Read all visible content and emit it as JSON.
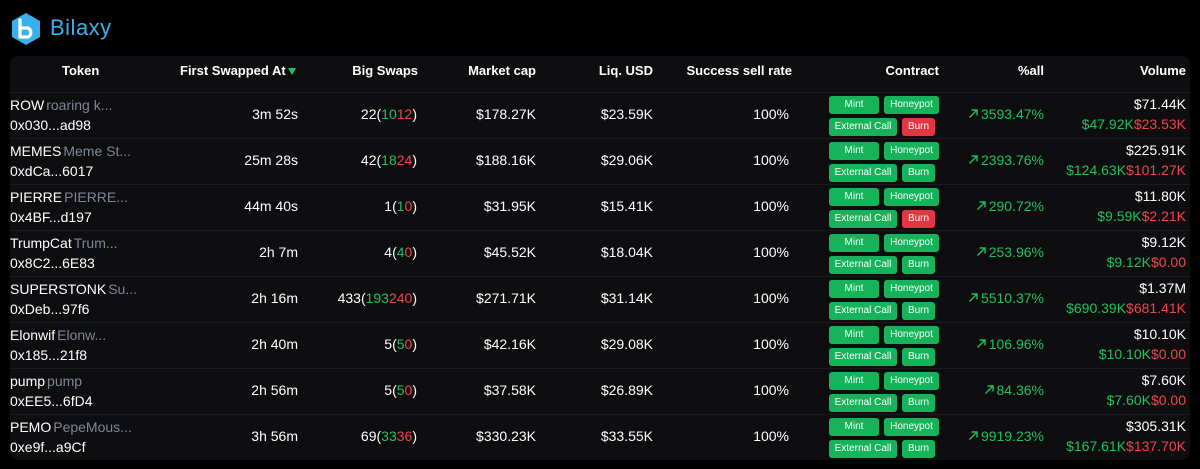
{
  "app": {
    "brand": "Bilaxy",
    "logo_icon": "bilaxy-logo-icon"
  },
  "colors": {
    "accent": "#3ab0ea",
    "positive": "#1fc15e",
    "negative": "#f0454b",
    "tag_green": "#17b35a",
    "tag_red": "#e23643"
  },
  "table": {
    "headers": {
      "token": "Token",
      "first_swapped": "First Swapped At",
      "big_swaps": "Big Swaps",
      "market_cap": "Market cap",
      "liq_usd": "Liq. USD",
      "success_sell_rate": "Success sell rate",
      "contract": "Contract",
      "pct_all": "%all",
      "volume": "Volume"
    },
    "rows": [
      {
        "symbol": "ROW",
        "name": "roaring k...",
        "address": "0x030...ad98",
        "first_swapped": "3m 52s",
        "big_total": "22",
        "big_buy": "10",
        "big_sell": "12",
        "market_cap": "$178.27K",
        "liq": "$23.59K",
        "ssr": "100%",
        "tags": [
          {
            "label": "Mint",
            "color": "green"
          },
          {
            "label": "Honeypot",
            "color": "green"
          },
          {
            "label": "External Call",
            "color": "green"
          },
          {
            "label": "Burn",
            "color": "red"
          }
        ],
        "pct_all": "3593.47%",
        "vol_total": "$71.44K",
        "vol_buy": "$47.92K",
        "vol_sell": "$23.53K"
      },
      {
        "symbol": "MEMES",
        "name": "Meme St...",
        "address": "0xdCa...6017",
        "first_swapped": "25m 28s",
        "big_total": "42",
        "big_buy": "18",
        "big_sell": "24",
        "market_cap": "$188.16K",
        "liq": "$29.06K",
        "ssr": "100%",
        "tags": [
          {
            "label": "Mint",
            "color": "green"
          },
          {
            "label": "Honeypot",
            "color": "green"
          },
          {
            "label": "External Call",
            "color": "green"
          },
          {
            "label": "Burn",
            "color": "green"
          }
        ],
        "pct_all": "2393.76%",
        "vol_total": "$225.91K",
        "vol_buy": "$124.63K",
        "vol_sell": "$101.27K"
      },
      {
        "symbol": "PIERRE",
        "name": "PIERRE...",
        "address": "0x4BF...d197",
        "first_swapped": "44m 40s",
        "big_total": "1",
        "big_buy": "1",
        "big_sell": "0",
        "market_cap": "$31.95K",
        "liq": "$15.41K",
        "ssr": "100%",
        "tags": [
          {
            "label": "Mint",
            "color": "green"
          },
          {
            "label": "Honeypot",
            "color": "green"
          },
          {
            "label": "External Call",
            "color": "green"
          },
          {
            "label": "Burn",
            "color": "red"
          }
        ],
        "pct_all": "290.72%",
        "vol_total": "$11.80K",
        "vol_buy": "$9.59K",
        "vol_sell": "$2.21K"
      },
      {
        "symbol": "TrumpCat",
        "name": "Trum...",
        "address": "0x8C2...6E83",
        "first_swapped": "2h 7m",
        "big_total": "4",
        "big_buy": "4",
        "big_sell": "0",
        "market_cap": "$45.52K",
        "liq": "$18.04K",
        "ssr": "100%",
        "tags": [
          {
            "label": "Mint",
            "color": "green"
          },
          {
            "label": "Honeypot",
            "color": "green"
          },
          {
            "label": "External Call",
            "color": "green"
          },
          {
            "label": "Burn",
            "color": "green"
          }
        ],
        "pct_all": "253.96%",
        "vol_total": "$9.12K",
        "vol_buy": "$9.12K",
        "vol_sell": "$0.00"
      },
      {
        "symbol": "SUPERSTONK",
        "name": "Su...",
        "address": "0xDeb...97f6",
        "first_swapped": "2h 16m",
        "big_total": "433",
        "big_buy": "193",
        "big_sell": "240",
        "market_cap": "$271.71K",
        "liq": "$31.14K",
        "ssr": "100%",
        "tags": [
          {
            "label": "Mint",
            "color": "green"
          },
          {
            "label": "Honeypot",
            "color": "green"
          },
          {
            "label": "External Call",
            "color": "green"
          },
          {
            "label": "Burn",
            "color": "green"
          }
        ],
        "pct_all": "5510.37%",
        "vol_total": "$1.37M",
        "vol_buy": "$690.39K",
        "vol_sell": "$681.41K"
      },
      {
        "symbol": "Elonwif",
        "name": "Elonw...",
        "address": "0x185...21f8",
        "first_swapped": "2h 40m",
        "big_total": "5",
        "big_buy": "5",
        "big_sell": "0",
        "market_cap": "$42.16K",
        "liq": "$29.08K",
        "ssr": "100%",
        "tags": [
          {
            "label": "Mint",
            "color": "green"
          },
          {
            "label": "Honeypot",
            "color": "green"
          },
          {
            "label": "External Call",
            "color": "green"
          },
          {
            "label": "Burn",
            "color": "green"
          }
        ],
        "pct_all": "106.96%",
        "vol_total": "$10.10K",
        "vol_buy": "$10.10K",
        "vol_sell": "$0.00"
      },
      {
        "symbol": "pump",
        "name": "pump",
        "address": "0xEE5...6fD4",
        "first_swapped": "2h 56m",
        "big_total": "5",
        "big_buy": "5",
        "big_sell": "0",
        "market_cap": "$37.58K",
        "liq": "$26.89K",
        "ssr": "100%",
        "tags": [
          {
            "label": "Mint",
            "color": "green"
          },
          {
            "label": "Honeypot",
            "color": "green"
          },
          {
            "label": "External Call",
            "color": "green"
          },
          {
            "label": "Burn",
            "color": "green"
          }
        ],
        "pct_all": "84.36%",
        "vol_total": "$7.60K",
        "vol_buy": "$7.60K",
        "vol_sell": "$0.00"
      },
      {
        "symbol": "PEMO",
        "name": "PepeMous...",
        "address": "0xe9f...a9Cf",
        "first_swapped": "3h 56m",
        "big_total": "69",
        "big_buy": "33",
        "big_sell": "36",
        "market_cap": "$330.23K",
        "liq": "$33.55K",
        "ssr": "100%",
        "tags": [
          {
            "label": "Mint",
            "color": "green"
          },
          {
            "label": "Honeypot",
            "color": "green"
          },
          {
            "label": "External Call",
            "color": "green"
          },
          {
            "label": "Burn",
            "color": "green"
          }
        ],
        "pct_all": "9919.23%",
        "vol_total": "$305.31K",
        "vol_buy": "$167.61K",
        "vol_sell": "$137.70K"
      }
    ]
  }
}
